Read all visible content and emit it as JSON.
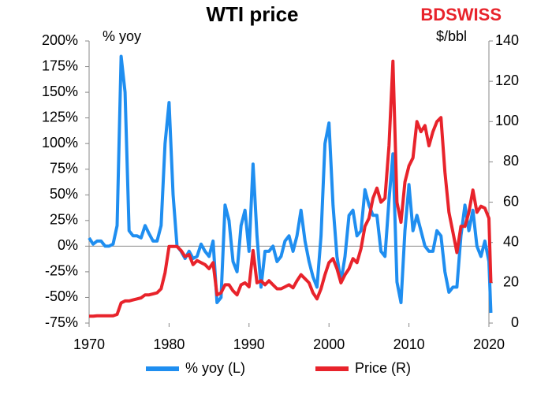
{
  "chart_data": {
    "type": "line",
    "title": "WTI price",
    "logo": "BDSWISS",
    "y_label": "% yoy",
    "y2_label": "$/bbl",
    "x": [
      1970,
      1970.5,
      1971,
      1971.5,
      1972,
      1972.5,
      1973,
      1973.5,
      1974,
      1974.5,
      1975,
      1975.5,
      1976,
      1976.5,
      1977,
      1977.5,
      1978,
      1978.5,
      1979,
      1979.5,
      1980,
      1980.5,
      1981,
      1981.5,
      1982,
      1982.5,
      1983,
      1983.5,
      1984,
      1984.5,
      1985,
      1985.5,
      1986,
      1986.5,
      1987,
      1987.5,
      1988,
      1988.5,
      1989,
      1989.5,
      1990,
      1990.5,
      1991,
      1991.5,
      1992,
      1992.5,
      1993,
      1993.5,
      1994,
      1994.5,
      1995,
      1995.5,
      1996,
      1996.5,
      1997,
      1997.5,
      1998,
      1998.5,
      1999,
      1999.5,
      2000,
      2000.5,
      2001,
      2001.5,
      2002,
      2002.5,
      2003,
      2003.5,
      2004,
      2004.5,
      2005,
      2005.5,
      2006,
      2006.5,
      2007,
      2007.5,
      2008,
      2008.5,
      2009,
      2009.5,
      2010,
      2010.5,
      2011,
      2011.5,
      2012,
      2012.5,
      2013,
      2013.5,
      2014,
      2014.5,
      2015,
      2015.5,
      2016,
      2016.5,
      2017,
      2017.5,
      2018,
      2018.5,
      2019,
      2019.5,
      2020,
      2020.25
    ],
    "series": [
      {
        "name": "% yoy (L)",
        "color": "#1f8ef0",
        "axis": "y",
        "values": [
          8,
          2,
          5,
          5,
          0,
          0,
          2,
          20,
          185,
          150,
          15,
          10,
          10,
          8,
          20,
          12,
          5,
          5,
          20,
          100,
          140,
          50,
          0,
          -5,
          -12,
          -5,
          -12,
          -10,
          2,
          -5,
          -10,
          5,
          -55,
          -50,
          40,
          25,
          -15,
          -25,
          20,
          35,
          -5,
          80,
          10,
          -40,
          -5,
          -5,
          0,
          -15,
          -10,
          5,
          10,
          -5,
          10,
          35,
          5,
          -15,
          -30,
          -40,
          10,
          100,
          120,
          40,
          -10,
          -35,
          -10,
          30,
          35,
          10,
          15,
          55,
          40,
          30,
          30,
          -5,
          -10,
          45,
          90,
          -35,
          -55,
          15,
          60,
          15,
          30,
          15,
          0,
          -5,
          -5,
          15,
          10,
          -25,
          -45,
          -40,
          -40,
          10,
          40,
          15,
          35,
          0,
          -10,
          5,
          -15,
          -65
        ]
      },
      {
        "name": "Price (R)",
        "color": "#e8232b",
        "axis": "y2",
        "values": [
          3.4,
          3.4,
          3.6,
          3.6,
          3.6,
          3.6,
          3.6,
          4.3,
          10,
          11,
          11,
          11.5,
          12,
          12.5,
          14,
          14,
          14.5,
          15,
          17,
          25,
          38,
          38,
          38,
          36,
          33,
          34,
          29,
          31,
          30,
          29,
          27,
          30,
          14,
          15,
          19,
          19,
          16,
          14,
          19,
          20,
          18,
          36,
          20,
          21,
          19,
          21,
          19,
          17,
          17,
          18,
          19,
          17.5,
          21,
          24,
          22,
          20,
          15,
          12,
          17,
          24,
          30,
          32,
          27,
          20,
          24,
          27,
          32,
          30,
          37,
          48,
          52,
          62,
          67,
          60,
          62,
          88,
          130,
          60,
          50,
          70,
          78,
          82,
          100,
          95,
          98,
          88,
          95,
          100,
          102,
          75,
          55,
          45,
          35,
          48,
          48,
          55,
          66,
          55,
          58,
          57,
          52,
          20
        ]
      }
    ],
    "xlim": [
      1970,
      2020
    ],
    "xticks": [
      1970,
      1980,
      1990,
      2000,
      2010,
      2020
    ],
    "ylim": [
      -75,
      200
    ],
    "yticks": [
      {
        "value": -75,
        "label": "-75%"
      },
      {
        "value": -50,
        "label": "-50%"
      },
      {
        "value": -25,
        "label": "-25%"
      },
      {
        "value": 0,
        "label": "0%"
      },
      {
        "value": 25,
        "label": "25%"
      },
      {
        "value": 50,
        "label": "50%"
      },
      {
        "value": 75,
        "label": "75%"
      },
      {
        "value": 100,
        "label": "100%"
      },
      {
        "value": 125,
        "label": "125%"
      },
      {
        "value": 150,
        "label": "150%"
      },
      {
        "value": 175,
        "label": "175%"
      },
      {
        "value": 200,
        "label": "200%"
      }
    ],
    "y2lim": [
      0,
      140
    ],
    "y2ticks": [
      0,
      20,
      40,
      60,
      80,
      100,
      120,
      140
    ]
  }
}
